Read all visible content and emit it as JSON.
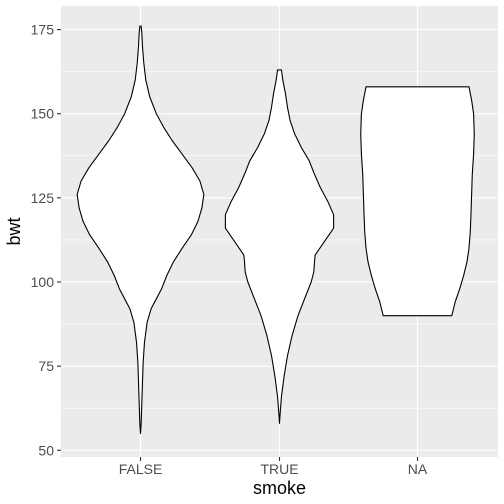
{
  "chart_data": {
    "type": "violin",
    "xlabel": "smoke",
    "ylabel": "bwt",
    "categories": [
      "FALSE",
      "TRUE",
      "NA"
    ],
    "ylim": [
      48,
      182
    ],
    "yticks": [
      50,
      75,
      100,
      125,
      150,
      175
    ],
    "grid": true,
    "colors": {
      "panel": "#ebebeb",
      "grid_major": "#ffffff",
      "violin_fill": "#ffffff",
      "violin_stroke": "#000000",
      "tick_text": "#4d4d4d",
      "axis_title": "#000000"
    },
    "series": [
      {
        "category": "FALSE",
        "y_range": [
          55,
          176
        ],
        "density": [
          [
            55,
            0.0
          ],
          [
            58,
            0.01
          ],
          [
            64,
            0.02
          ],
          [
            70,
            0.03
          ],
          [
            76,
            0.04
          ],
          [
            82,
            0.06
          ],
          [
            88,
            0.1
          ],
          [
            92,
            0.16
          ],
          [
            95,
            0.24
          ],
          [
            98,
            0.32
          ],
          [
            102,
            0.4
          ],
          [
            106,
            0.5
          ],
          [
            110,
            0.63
          ],
          [
            114,
            0.77
          ],
          [
            118,
            0.87
          ],
          [
            122,
            0.93
          ],
          [
            126,
            0.96
          ],
          [
            130,
            0.9
          ],
          [
            134,
            0.78
          ],
          [
            138,
            0.63
          ],
          [
            142,
            0.48
          ],
          [
            146,
            0.35
          ],
          [
            150,
            0.24
          ],
          [
            155,
            0.14
          ],
          [
            160,
            0.08
          ],
          [
            165,
            0.05
          ],
          [
            170,
            0.03
          ],
          [
            174,
            0.02
          ],
          [
            176,
            0.01
          ]
        ]
      },
      {
        "category": "TRUE",
        "y_range": [
          58,
          163
        ],
        "density": [
          [
            58,
            0.0
          ],
          [
            61,
            0.01
          ],
          [
            66,
            0.03
          ],
          [
            72,
            0.07
          ],
          [
            78,
            0.12
          ],
          [
            84,
            0.19
          ],
          [
            90,
            0.28
          ],
          [
            96,
            0.4
          ],
          [
            100,
            0.48
          ],
          [
            103,
            0.52
          ],
          [
            106,
            0.53
          ],
          [
            108,
            0.54
          ],
          [
            112,
            0.68
          ],
          [
            116,
            0.82
          ],
          [
            120,
            0.82
          ],
          [
            124,
            0.73
          ],
          [
            128,
            0.62
          ],
          [
            132,
            0.53
          ],
          [
            136,
            0.45
          ],
          [
            140,
            0.33
          ],
          [
            144,
            0.23
          ],
          [
            148,
            0.16
          ],
          [
            152,
            0.12
          ],
          [
            156,
            0.09
          ],
          [
            160,
            0.05
          ],
          [
            163,
            0.03
          ]
        ]
      },
      {
        "category": "NA",
        "y_range": [
          90,
          158
        ],
        "density": [
          [
            90,
            0.52
          ],
          [
            94,
            0.57
          ],
          [
            98,
            0.64
          ],
          [
            102,
            0.7
          ],
          [
            106,
            0.75
          ],
          [
            110,
            0.78
          ],
          [
            115,
            0.8
          ],
          [
            120,
            0.81
          ],
          [
            126,
            0.82
          ],
          [
            132,
            0.83
          ],
          [
            138,
            0.85
          ],
          [
            144,
            0.86
          ],
          [
            150,
            0.85
          ],
          [
            154,
            0.82
          ],
          [
            158,
            0.78
          ]
        ]
      }
    ]
  }
}
